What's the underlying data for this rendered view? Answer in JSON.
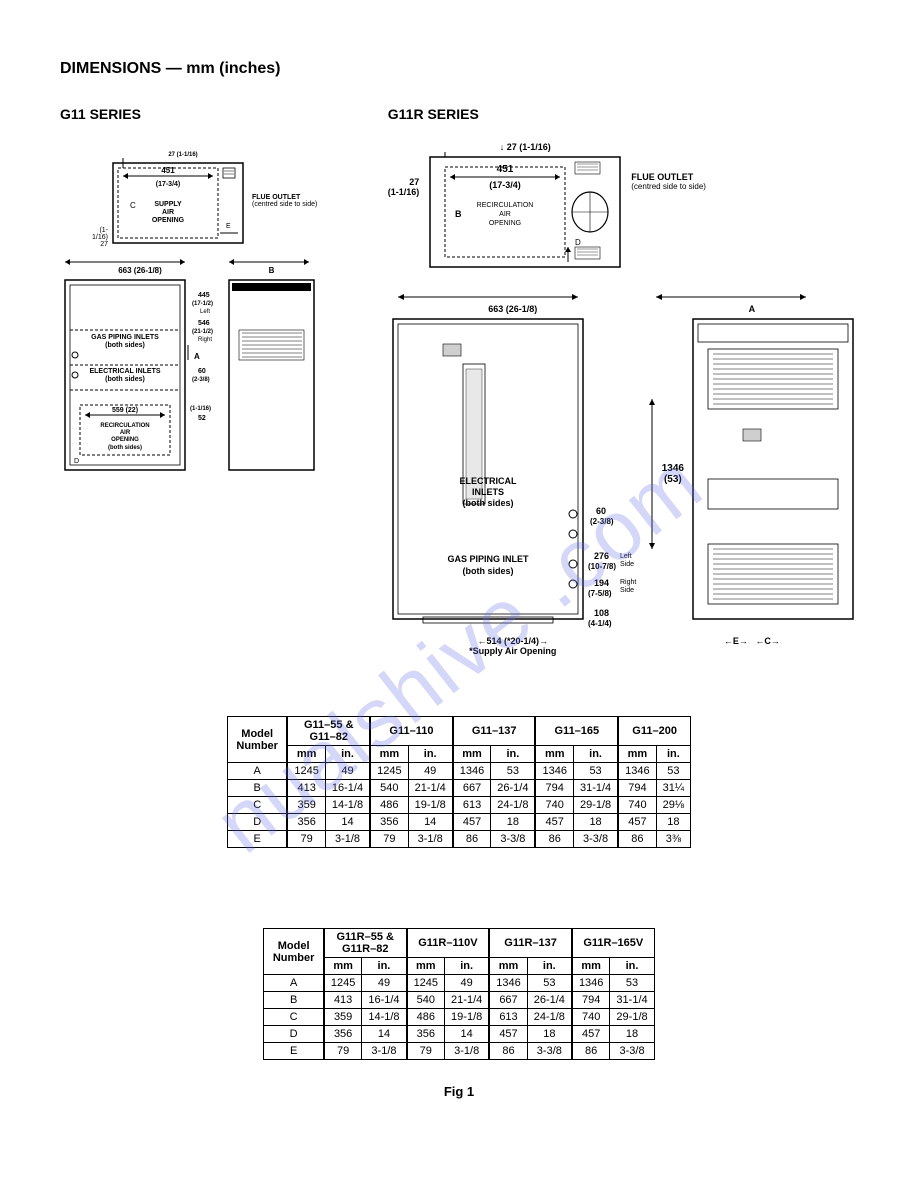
{
  "title": "DIMENSIONS — mm (inches)",
  "watermark": "nualshive .com",
  "fig_label": "Fig 1",
  "g11": {
    "series_label": "G11 SERIES",
    "flue_outlet": "FLUE OUTLET",
    "flue_sub": "(centred side to side)",
    "top": {
      "dim_27": "27 (1-1/16)",
      "dim_451": "451",
      "dim_451_in": "(17-3/4)",
      "left_27": "(1-1/16)",
      "left_27n": "27",
      "C": "C",
      "supply": "SUPPLY\nAIR\nOPENING",
      "E": "E"
    },
    "dim_663": "663 (26-1/8)",
    "dim_B": "B",
    "front": {
      "gas": "GAS PIPING INLETS",
      "both": "(both sides)",
      "elec": "ELECTRICAL INLETS",
      "d559": "559 (22)",
      "recirc": "RECIRCULATION\nAIR\nOPENING",
      "both2": "(both sides)",
      "D": "D",
      "d445": "445",
      "d445in": "(17-1/2)",
      "d445side": "Left",
      "d546": "546",
      "d546in": "(21-1/2)",
      "d546side": "Right",
      "A": "A",
      "d60": "60",
      "d60in": "(2-3/8)",
      "d27": "(1-1/16)",
      "d52": "52"
    }
  },
  "g11r": {
    "series_label": "G11R SERIES",
    "flue_outlet": "FLUE OUTLET",
    "flue_sub": "(centred side to side)",
    "top": {
      "dim_27": "27 (1-1/16)",
      "dim_451": "451",
      "dim_451_in": "(17-3/4)",
      "left_27n": "27",
      "left_27": "(1-1/16)",
      "B": "B",
      "recirc": "RECIRCULATION\nAIR\nOPENING",
      "D": "D"
    },
    "dim_663": "663 (26-1/8)",
    "dim_A": "A",
    "front": {
      "elec": "ELECTRICAL\nINLETS",
      "both": "(both sides)",
      "gas": "GAS PIPING INLET",
      "d60": "60",
      "d60in": "(2-3/8)",
      "d276": "276",
      "d276in": "(10-7/8)",
      "d276side": "Left\nSide",
      "d194": "194",
      "d194in": "(7-5/8)",
      "d194side": "Right\nSide",
      "d108": "108",
      "d108in": "(4-1/4)",
      "d514": "514 (*20-1/4)",
      "supply_note": "*Supply Air Opening"
    },
    "side": {
      "d1346": "1346",
      "d1346in": "(53)",
      "E": "E",
      "C": "C"
    }
  },
  "table1": {
    "header_model": "Model\nNumber",
    "models": [
      "G11–55 &\nG11–82",
      "G11–110",
      "G11–137",
      "G11–165",
      "G11–200"
    ],
    "units": [
      "mm",
      "in."
    ],
    "rows": [
      {
        "label": "A",
        "cells": [
          "1245",
          "49",
          "1245",
          "49",
          "1346",
          "53",
          "1346",
          "53",
          "1346",
          "53"
        ]
      },
      {
        "label": "B",
        "cells": [
          "413",
          "16-1/4",
          "540",
          "21-1/4",
          "667",
          "26-1/4",
          "794",
          "31-1/4",
          "794",
          "31¼"
        ]
      },
      {
        "label": "C",
        "cells": [
          "359",
          "14-1/8",
          "486",
          "19-1/8",
          "613",
          "24-1/8",
          "740",
          "29-1/8",
          "740",
          "29⅛"
        ]
      },
      {
        "label": "D",
        "cells": [
          "356",
          "14",
          "356",
          "14",
          "457",
          "18",
          "457",
          "18",
          "457",
          "18"
        ]
      },
      {
        "label": "E",
        "cells": [
          "79",
          "3-1/8",
          "79",
          "3-1/8",
          "86",
          "3-3/8",
          "86",
          "3-3/8",
          "86",
          "3⅜"
        ]
      }
    ]
  },
  "table2": {
    "header_model": "Model\nNumber",
    "models": [
      "G11R–55 &\nG11R–82",
      "G11R–110V",
      "G11R–137",
      "G11R–165V"
    ],
    "units": [
      "mm",
      "in."
    ],
    "rows": [
      {
        "label": "A",
        "cells": [
          "1245",
          "49",
          "1245",
          "49",
          "1346",
          "53",
          "1346",
          "53"
        ]
      },
      {
        "label": "B",
        "cells": [
          "413",
          "16-1/4",
          "540",
          "21-1/4",
          "667",
          "26-1/4",
          "794",
          "31-1/4"
        ]
      },
      {
        "label": "C",
        "cells": [
          "359",
          "14-1/8",
          "486",
          "19-1/8",
          "613",
          "24-1/8",
          "740",
          "29-1/8"
        ]
      },
      {
        "label": "D",
        "cells": [
          "356",
          "14",
          "356",
          "14",
          "457",
          "18",
          "457",
          "18"
        ]
      },
      {
        "label": "E",
        "cells": [
          "79",
          "3-1/8",
          "79",
          "3-1/8",
          "86",
          "3-3/8",
          "86",
          "3-3/8"
        ]
      }
    ]
  },
  "colors": {
    "line": "#000000",
    "bg": "#ffffff",
    "watermark": "rgba(100,110,230,0.28)"
  }
}
